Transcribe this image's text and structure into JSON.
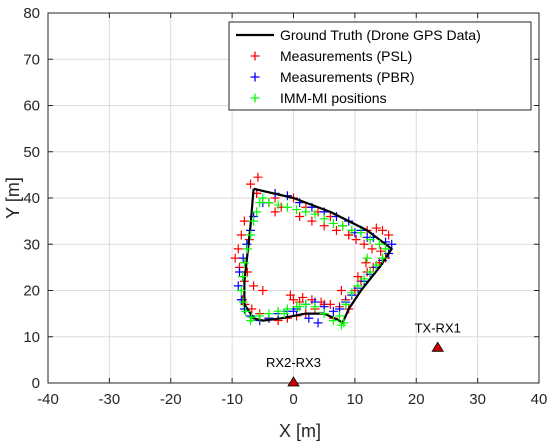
{
  "chart_data": {
    "type": "scatter",
    "xlabel": "X [m]",
    "ylabel": "Y [m]",
    "xlim": [
      -40,
      40
    ],
    "ylim": [
      0,
      80
    ],
    "xticks": [
      "-40",
      "-30",
      "-20",
      "-10",
      "0",
      "10",
      "20",
      "30",
      "40"
    ],
    "yticks": [
      "0",
      "10",
      "20",
      "30",
      "40",
      "50",
      "60",
      "70",
      "80"
    ],
    "grid": true,
    "legend_position": "top-right",
    "legend": [
      {
        "label": "Ground Truth (Drone GPS Data)",
        "marker": "line",
        "color": "#000000"
      },
      {
        "label": "Measurements (PSL)",
        "marker": "+",
        "color": "#ff0000"
      },
      {
        "label": "Measurements (PBR)",
        "marker": "+",
        "color": "#0000ff"
      },
      {
        "label": "IMM-MI positions",
        "marker": "+",
        "color": "#00ff00"
      }
    ],
    "series": [
      {
        "name": "Ground Truth (Drone GPS Data)",
        "marker": "line",
        "color": "#000000",
        "x": [
          -6.5,
          0,
          6,
          12,
          16,
          14,
          11,
          9,
          8,
          7.5,
          5,
          2,
          0,
          -2,
          -5,
          -6.5,
          -8,
          -8,
          -7.5,
          -7,
          -6.5
        ],
        "y": [
          42,
          40,
          37,
          33,
          29,
          25,
          20,
          16,
          13,
          13.5,
          15,
          15,
          14.5,
          14,
          13.5,
          14,
          17,
          22,
          28,
          34,
          42
        ]
      },
      {
        "name": "Measurements (PSL)",
        "marker": "+",
        "color": "#ff0000",
        "x": [
          -5.8,
          -7,
          -6,
          -4,
          -3,
          -8,
          -8.5,
          -7.2,
          -9,
          -9.5,
          -8.8,
          -7.5,
          -8,
          -6.5,
          -5,
          -8.3,
          -7.9,
          -6.8,
          -5.5,
          -4,
          -2.5,
          -1,
          0.5,
          2,
          3.5,
          5,
          1,
          0,
          -0.5,
          1.5,
          3,
          4.5,
          6,
          7.5,
          9,
          8.5,
          10,
          11,
          12,
          13,
          14,
          15,
          14.2,
          12.8,
          11.5,
          10.2,
          9,
          12,
          13.5,
          14.5,
          15.5,
          8,
          6,
          4,
          2,
          0,
          1,
          3,
          5,
          7,
          9,
          -2,
          -4,
          -6,
          -3,
          6.5,
          7.8,
          10.5,
          11.8
        ],
        "y": [
          44.5,
          43,
          41,
          39,
          37,
          35,
          32,
          31,
          29,
          27,
          25,
          24,
          22,
          21,
          20,
          18,
          17,
          16,
          15,
          14,
          13.5,
          14,
          14.5,
          15,
          16,
          17,
          17.5,
          18,
          19,
          18.5,
          18,
          17.5,
          17,
          16.5,
          16,
          18,
          20,
          22,
          24,
          25,
          26,
          27,
          28.5,
          29,
          30,
          31,
          32,
          33,
          33.5,
          33,
          32,
          34,
          36,
          37,
          38,
          40,
          36,
          35,
          34,
          33,
          32,
          38,
          39,
          41,
          40,
          14,
          20,
          23,
          26
        ]
      },
      {
        "name": "Measurements (PBR)",
        "marker": "+",
        "color": "#0000ff",
        "x": [
          -3,
          -1,
          1,
          3,
          5,
          7,
          9,
          11,
          13,
          15,
          16,
          15.5,
          14.5,
          13.5,
          12.5,
          11.5,
          10.5,
          9.5,
          8.5,
          7.5,
          6.5,
          5,
          3.5,
          2,
          0.5,
          -1,
          -2.5,
          -4,
          -5.5,
          -7,
          -8,
          -8.5,
          -9,
          -8.8,
          -8.2,
          -7.6,
          -7,
          -6.5,
          -5,
          0,
          2.5,
          4,
          10,
          12
        ],
        "y": [
          41,
          40.5,
          39,
          38,
          37,
          36,
          35,
          33,
          31.5,
          30.5,
          30,
          28,
          26.5,
          25,
          23.5,
          22,
          20.5,
          19,
          17.5,
          16,
          15.5,
          16.5,
          17.5,
          17,
          16,
          15.5,
          15,
          14,
          13.5,
          14.5,
          16,
          18,
          21,
          24,
          27,
          30,
          33,
          36,
          39,
          15.5,
          14,
          13,
          32.5,
          31.5
        ]
      },
      {
        "name": "IMM-MI positions",
        "marker": "+",
        "color": "#00ff00",
        "x": [
          -5.5,
          -5,
          -4,
          -2.5,
          -1,
          0.5,
          2,
          3.5,
          5,
          6.5,
          8,
          9.5,
          11,
          12.5,
          14,
          15,
          14.5,
          13.5,
          12.5,
          11.5,
          10.5,
          9.5,
          8.5,
          7.5,
          6.5,
          5,
          3.5,
          2,
          0.5,
          -1,
          -2.5,
          -4,
          -5.5,
          -7,
          -7.8,
          -8.2,
          -8.5,
          -8.3,
          -8,
          -7.5,
          -7,
          -6.5,
          -6,
          7.8,
          8.2,
          1,
          -1.5,
          -6.8,
          12
        ],
        "y": [
          39,
          40,
          39,
          38.5,
          38,
          37.5,
          37,
          36.5,
          35.5,
          34.5,
          34,
          33,
          32.5,
          31,
          30,
          29,
          27,
          25.5,
          24,
          22.5,
          21,
          19.5,
          17,
          14.5,
          13.5,
          15,
          16.5,
          17,
          16.5,
          16,
          15.5,
          15,
          14.5,
          13.5,
          15.5,
          17.5,
          20,
          23,
          26,
          29,
          32,
          35,
          37,
          12.5,
          13,
          16.5,
          15,
          14.2,
          27
        ]
      }
    ],
    "annotations": [
      {
        "label": "RX2-RX3",
        "marker": "triangle",
        "color": "#cc0000",
        "x": 0,
        "y": 0
      },
      {
        "label": "TX-RX1",
        "marker": "triangle",
        "color": "#cc0000",
        "x": 23.5,
        "y": 7.5
      }
    ]
  }
}
